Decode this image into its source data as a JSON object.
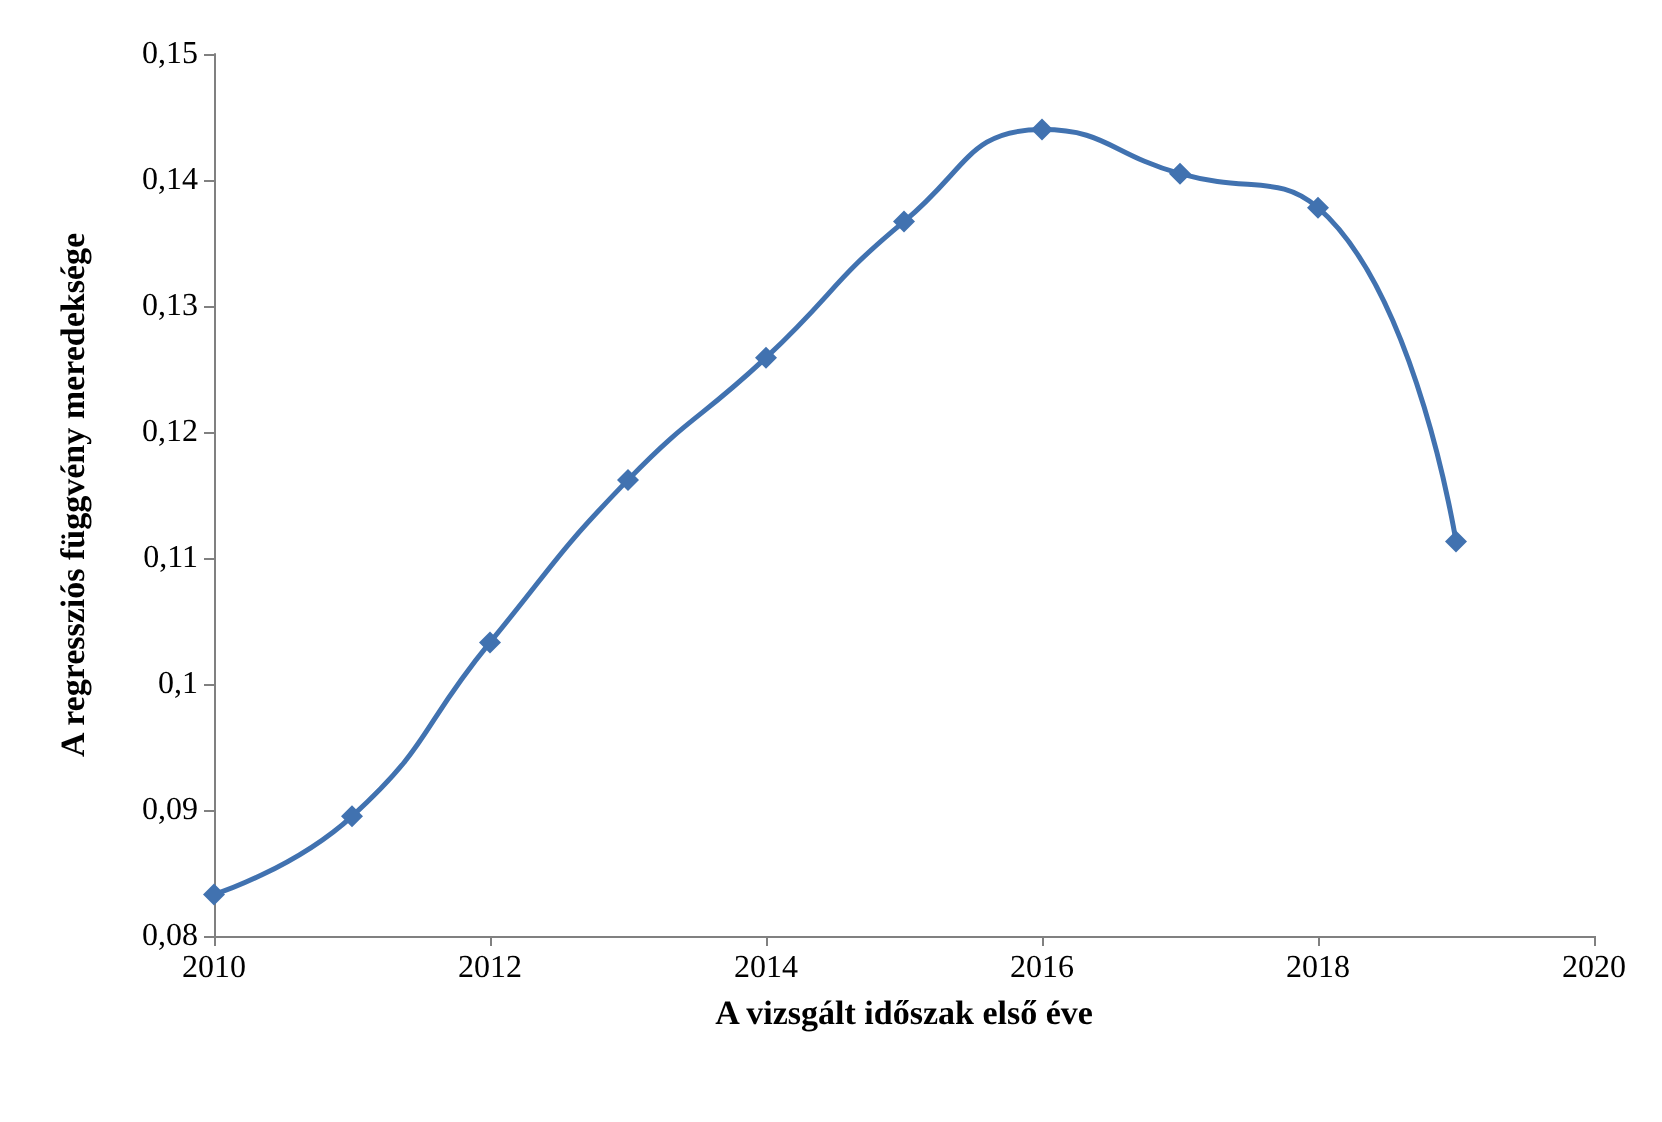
{
  "chart_data": {
    "type": "line",
    "xlabel": "A vizsgált időszak első éve",
    "ylabel": "A regressziós függvény meredeksége",
    "x": [
      2010,
      2011,
      2012,
      2013,
      2014,
      2015,
      2016,
      2017,
      2018,
      2019
    ],
    "series": [
      {
        "color": "#4172b0",
        "values": [
          0.0833,
          0.0895,
          0.1033,
          0.1162,
          0.1259,
          0.1367,
          0.144,
          0.1405,
          0.1378,
          0.1113
        ]
      }
    ],
    "xlim": [
      2010,
      2020
    ],
    "xticks": [
      2010,
      2012,
      2014,
      2016,
      2018,
      2020
    ],
    "ylim": [
      0.08,
      0.15
    ],
    "yticks": [
      {
        "value": 0.08,
        "label": "0,08"
      },
      {
        "value": 0.09,
        "label": "0,09"
      },
      {
        "value": 0.1,
        "label": "0,1"
      },
      {
        "value": 0.11,
        "label": "0,11"
      },
      {
        "value": 0.12,
        "label": "0,12"
      },
      {
        "value": 0.13,
        "label": "0,13"
      },
      {
        "value": 0.14,
        "label": "0,14"
      },
      {
        "value": 0.15,
        "label": "0,15"
      }
    ],
    "marker": "diamond",
    "line_style": "solid",
    "grid": false
  }
}
